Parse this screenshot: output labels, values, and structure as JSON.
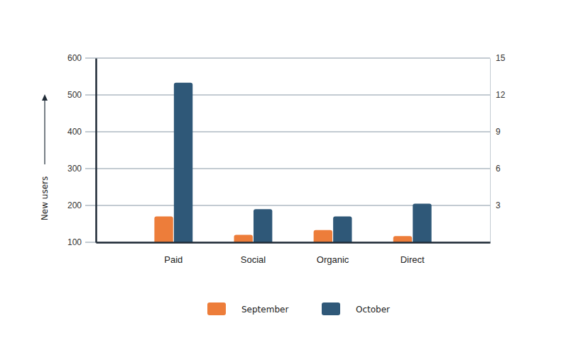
{
  "chart_data": {
    "type": "bar",
    "y_label": "New users",
    "categories": [
      "Paid",
      "Social",
      "Organic",
      "Direct"
    ],
    "series": [
      {
        "name": "September",
        "color": "#ed7d3a",
        "values": [
          170,
          120,
          133,
          117
        ]
      },
      {
        "name": "October",
        "color": "#2f5878",
        "values": [
          533,
          190,
          170,
          205
        ]
      }
    ],
    "ylim": [
      100,
      600
    ],
    "yticks": [
      100,
      200,
      300,
      400,
      500,
      600
    ],
    "y2lim": [
      0,
      15
    ],
    "y2ticks": [
      3,
      6,
      9,
      12,
      15
    ],
    "grid": true,
    "legend": "bottom"
  }
}
